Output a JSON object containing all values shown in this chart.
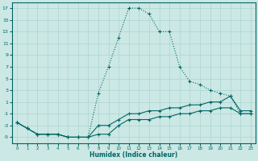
{
  "xlabel": "Humidex (Indice chaleur)",
  "bg_color": "#cce8e4",
  "line_color": "#006666",
  "grid_color": "#aad4d0",
  "xlim": [
    -0.5,
    23.5
  ],
  "ylim": [
    -6,
    18
  ],
  "yticks": [
    17,
    15,
    13,
    11,
    9,
    7,
    5,
    3,
    1,
    -1,
    -3,
    -5
  ],
  "xticks": [
    0,
    1,
    2,
    3,
    4,
    5,
    6,
    7,
    8,
    9,
    10,
    11,
    12,
    13,
    14,
    15,
    16,
    17,
    18,
    19,
    20,
    21,
    22,
    23
  ],
  "series": [
    {
      "x": [
        0,
        1,
        2,
        3,
        4,
        5,
        6,
        7,
        8,
        9,
        10,
        11,
        12,
        13,
        14,
        15,
        16,
        17,
        18,
        19,
        20,
        21,
        22,
        23
      ],
      "y": [
        -2.5,
        -3.5,
        -4.5,
        -4.5,
        -4.5,
        -5,
        -5,
        -5,
        -4.5,
        -4.5,
        -3,
        -2,
        -2,
        -2,
        -1.5,
        -1.5,
        -1,
        -1,
        -0.5,
        -0.5,
        0,
        0,
        -1,
        -1
      ],
      "linestyle": "solid",
      "marker": "+"
    },
    {
      "x": [
        0,
        1,
        2,
        3,
        4,
        5,
        6,
        7,
        8,
        9,
        10,
        11,
        12,
        13,
        14,
        15,
        16,
        17,
        18,
        19,
        20,
        21,
        22,
        23
      ],
      "y": [
        -2.5,
        -3.5,
        -4.5,
        -4.5,
        -4.5,
        -5,
        -5,
        -5,
        -3,
        -3,
        -2,
        -1,
        -1,
        -0.5,
        -0.5,
        0,
        0,
        0.5,
        0.5,
        1,
        1,
        2,
        -0.5,
        -0.5
      ],
      "linestyle": "solid",
      "marker": "+"
    },
    {
      "x": [
        0,
        1,
        2,
        3,
        4,
        5,
        6,
        7,
        8,
        9,
        10,
        11,
        12,
        13,
        14,
        15,
        16,
        17,
        18,
        19,
        20,
        21,
        22,
        23
      ],
      "y": [
        -2.5,
        -3.5,
        -4.5,
        -4.5,
        -4.5,
        -5,
        -5,
        -5,
        2.5,
        7,
        12,
        17,
        17,
        16,
        13,
        13,
        7,
        4.5,
        4,
        3,
        2.5,
        2,
        -1,
        -1
      ],
      "linestyle": "dotted",
      "marker": "+"
    }
  ]
}
